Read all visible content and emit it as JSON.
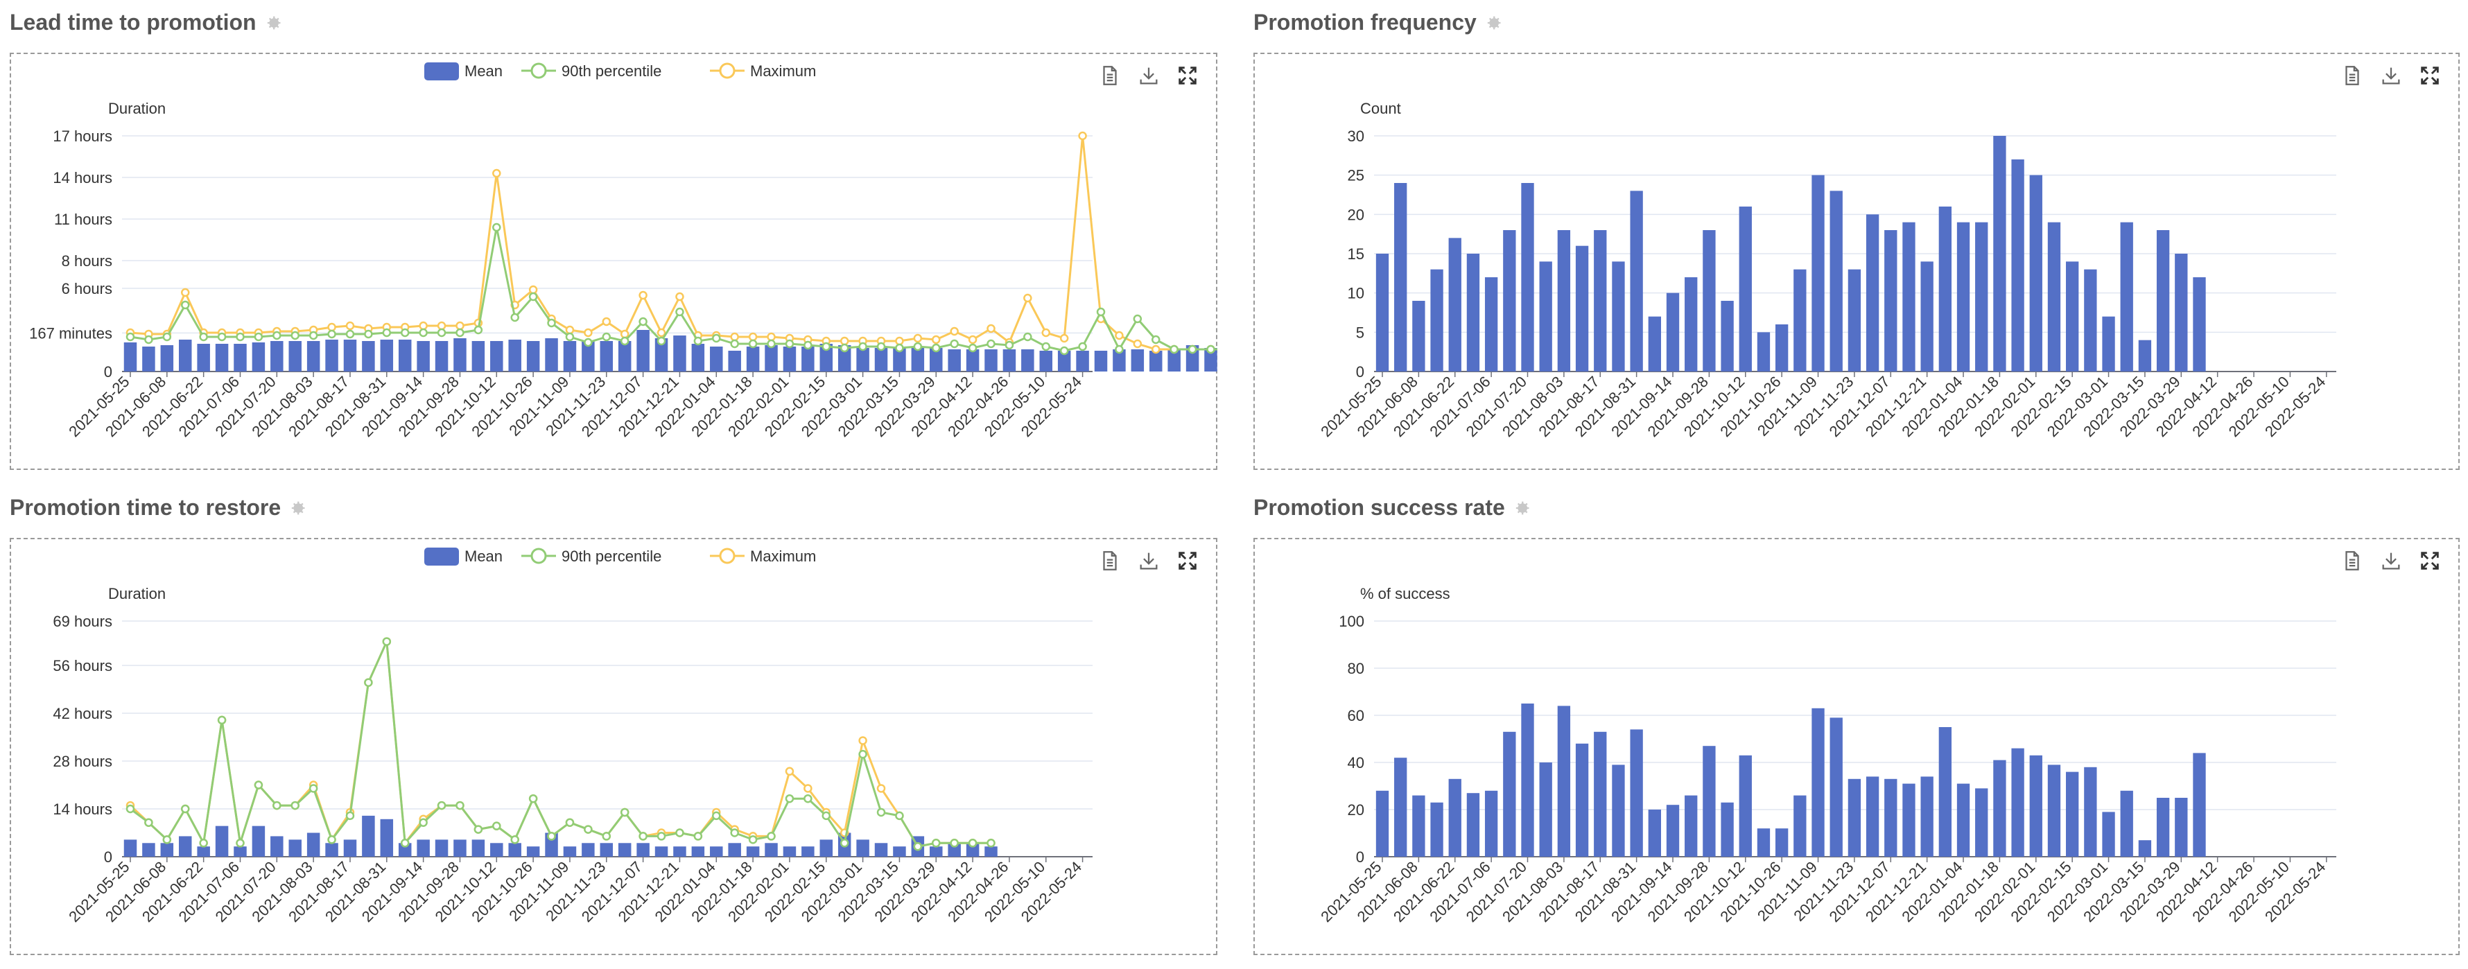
{
  "panels": [
    {
      "id": "lead-time",
      "title": "Lead time to promotion",
      "chart_data": {
        "type": "bar",
        "ylabel": "Duration",
        "legend": [
          "Mean",
          "90th percentile",
          "Maximum"
        ],
        "legend_placement": "top-center",
        "grid": true,
        "ylim": [
          0,
          17
        ],
        "yticks": [
          0,
          2.78,
          6,
          8,
          11,
          14,
          17
        ],
        "ytick_labels": [
          "0",
          "167 minutes",
          "6 hours",
          "8 hours",
          "11 hours",
          "14 hours",
          "17 hours"
        ],
        "x_tick_labels": [
          "2021-05-25",
          "2021-06-08",
          "2021-06-22",
          "2021-07-06",
          "2021-07-20",
          "2021-08-03",
          "2021-08-17",
          "2021-08-31",
          "2021-09-14",
          "2021-09-28",
          "2021-10-12",
          "2021-10-26",
          "2021-11-09",
          "2021-11-23",
          "2021-12-07",
          "2021-12-21",
          "2022-01-04",
          "2022-01-18",
          "2022-02-01",
          "2022-02-15",
          "2022-03-01",
          "2022-03-15",
          "2022-03-29",
          "2022-04-12",
          "2022-04-26",
          "2022-05-10",
          "2022-05-24"
        ],
        "series": [
          {
            "name": "Mean",
            "values": [
              2.1,
              1.8,
              1.9,
              2.3,
              2.0,
              2.0,
              2.0,
              2.1,
              2.2,
              2.2,
              2.2,
              2.3,
              2.3,
              2.2,
              2.3,
              2.3,
              2.2,
              2.2,
              2.4,
              2.2,
              2.2,
              2.3,
              2.2,
              2.4,
              2.2,
              2.2,
              2.2,
              2.2,
              3.0,
              2.4,
              2.6,
              2.0,
              1.8,
              1.5,
              1.8,
              1.9,
              1.8,
              1.8,
              2.0,
              1.9,
              1.7,
              1.7,
              1.7,
              1.7,
              1.7,
              1.6,
              1.6,
              1.6,
              1.6,
              1.6,
              1.5,
              1.5,
              1.5,
              1.5,
              1.6,
              1.6,
              1.5,
              1.6,
              1.9,
              1.7,
              1.5,
              2.4,
              1.5,
              1.5
            ]
          },
          {
            "name": "90th percentile",
            "values": [
              2.5,
              2.3,
              2.5,
              4.8,
              2.5,
              2.5,
              2.5,
              2.5,
              2.6,
              2.6,
              2.6,
              2.7,
              2.7,
              2.7,
              2.8,
              2.8,
              2.8,
              2.8,
              2.8,
              3.0,
              10.4,
              3.9,
              5.4,
              3.5,
              2.5,
              2.1,
              2.5,
              2.2,
              3.6,
              2.2,
              4.3,
              2.2,
              2.4,
              2.0,
              2.0,
              2.0,
              2.0,
              1.9,
              1.8,
              1.7,
              1.8,
              1.8,
              1.7,
              1.8,
              1.7,
              2.0,
              1.7,
              2.0,
              1.9,
              2.5,
              1.8,
              1.5,
              1.8,
              4.3,
              1.6,
              3.8,
              2.3,
              1.6,
              1.6,
              1.6,
              1.6,
              1.6,
              1.6,
              1.6
            ]
          },
          {
            "name": "Maximum",
            "values": [
              2.8,
              2.7,
              2.7,
              5.7,
              2.8,
              2.8,
              2.8,
              2.8,
              2.9,
              2.9,
              3.0,
              3.2,
              3.3,
              3.1,
              3.2,
              3.2,
              3.3,
              3.3,
              3.3,
              3.5,
              14.3,
              4.8,
              5.9,
              3.8,
              3.0,
              2.8,
              3.6,
              2.7,
              5.5,
              2.8,
              5.4,
              2.6,
              2.6,
              2.5,
              2.5,
              2.5,
              2.4,
              2.3,
              2.2,
              2.2,
              2.2,
              2.2,
              2.2,
              2.4,
              2.3,
              2.9,
              2.3,
              3.1,
              2.1,
              5.3,
              2.8,
              2.4,
              17.3,
              3.8,
              2.6,
              2.0,
              1.6,
              1.6,
              1.6,
              1.6,
              1.6,
              1.6,
              1.6,
              1.6
            ]
          }
        ]
      }
    },
    {
      "id": "frequency",
      "title": "Promotion frequency",
      "chart_data": {
        "type": "bar",
        "ylabel": "Count",
        "grid": true,
        "ylim": [
          0,
          30
        ],
        "yticks": [
          0,
          5,
          10,
          15,
          20,
          25,
          30
        ],
        "ytick_labels": [
          "0",
          "5",
          "10",
          "15",
          "20",
          "25",
          "30"
        ],
        "x_tick_labels": [
          "2021-05-25",
          "2021-06-08",
          "2021-06-22",
          "2021-07-06",
          "2021-07-20",
          "2021-08-03",
          "2021-08-17",
          "2021-08-31",
          "2021-09-14",
          "2021-09-28",
          "2021-10-12",
          "2021-10-26",
          "2021-11-09",
          "2021-11-23",
          "2021-12-07",
          "2021-12-21",
          "2022-01-04",
          "2022-01-18",
          "2022-02-01",
          "2022-02-15",
          "2022-03-01",
          "2022-03-15",
          "2022-03-29",
          "2022-04-12",
          "2022-04-26",
          "2022-05-10",
          "2022-05-24"
        ],
        "series": [
          {
            "name": "Count",
            "values": [
              15,
              24,
              9,
              13,
              17,
              15,
              12,
              18,
              24,
              14,
              18,
              16,
              18,
              14,
              23,
              7,
              10,
              12,
              18,
              9,
              21,
              5,
              6,
              13,
              25,
              23,
              13,
              20,
              18,
              19,
              14,
              21,
              19,
              19,
              30,
              27,
              25,
              19,
              14,
              13,
              7,
              19,
              4,
              18,
              15,
              12
            ]
          }
        ]
      }
    },
    {
      "id": "restore",
      "title": "Promotion time to restore",
      "chart_data": {
        "type": "bar",
        "ylabel": "Duration",
        "legend": [
          "Mean",
          "90th percentile",
          "Maximum"
        ],
        "legend_placement": "top-center",
        "grid": true,
        "ylim": [
          0,
          69
        ],
        "yticks": [
          0,
          14,
          28,
          42,
          56,
          69
        ],
        "ytick_labels": [
          "0",
          "14 hours",
          "28 hours",
          "42 hours",
          "56 hours",
          "69 hours"
        ],
        "x_tick_labels": [
          "2021-05-25",
          "2021-06-08",
          "2021-06-22",
          "2021-07-06",
          "2021-07-20",
          "2021-08-03",
          "2021-08-17",
          "2021-08-31",
          "2021-09-14",
          "2021-09-28",
          "2021-10-12",
          "2021-10-26",
          "2021-11-09",
          "2021-11-23",
          "2021-12-07",
          "2021-12-21",
          "2022-01-04",
          "2022-01-18",
          "2022-02-01",
          "2022-02-15",
          "2022-03-01",
          "2022-03-15",
          "2022-03-29",
          "2022-04-12",
          "2022-04-26",
          "2022-05-10",
          "2022-05-24"
        ],
        "series": [
          {
            "name": "Mean",
            "values": [
              5,
              4,
              4,
              6,
              3,
              9,
              3,
              9,
              6,
              5,
              7,
              4,
              5,
              12,
              11,
              4,
              5,
              5,
              5,
              5,
              4,
              4,
              3,
              7,
              3,
              4,
              4,
              4,
              4,
              3,
              3,
              3,
              3,
              4,
              3,
              4,
              3,
              3,
              5,
              7,
              5,
              4,
              3,
              6,
              3,
              4,
              4,
              3
            ]
          },
          {
            "name": "90th percentile",
            "values": [
              14,
              10,
              5,
              14,
              4,
              40,
              4,
              21,
              15,
              15,
              20,
              5,
              12,
              51,
              63,
              4,
              10,
              15,
              15,
              8,
              9,
              5,
              17,
              6,
              10,
              8,
              6,
              13,
              6,
              6,
              7,
              6,
              12,
              7,
              5,
              6,
              17,
              17,
              12,
              4,
              30,
              13,
              12,
              3,
              4,
              4,
              4,
              4
            ]
          },
          {
            "name": "Maximum",
            "values": [
              15,
              10,
              5,
              14,
              4,
              40,
              4,
              21,
              15,
              15,
              21,
              5,
              13,
              51,
              63,
              4,
              11,
              15,
              15,
              8,
              9,
              5,
              17,
              6,
              10,
              8,
              6,
              13,
              6,
              7,
              7,
              6,
              13,
              8,
              6,
              6,
              25,
              20,
              13,
              7,
              34,
              20,
              12,
              3,
              4,
              4,
              4,
              4
            ]
          }
        ]
      }
    },
    {
      "id": "success-rate",
      "title": "Promotion success rate",
      "chart_data": {
        "type": "bar",
        "ylabel": "% of success",
        "grid": true,
        "ylim": [
          0,
          100
        ],
        "yticks": [
          0,
          20,
          40,
          60,
          80,
          100
        ],
        "ytick_labels": [
          "0",
          "20",
          "40",
          "60",
          "80",
          "100"
        ],
        "x_tick_labels": [
          "2021-05-25",
          "2021-06-08",
          "2021-06-22",
          "2021-07-06",
          "2021-07-20",
          "2021-08-03",
          "2021-08-17",
          "2021-08-31",
          "2021-09-14",
          "2021-09-28",
          "2021-10-12",
          "2021-10-26",
          "2021-11-09",
          "2021-11-23",
          "2021-12-07",
          "2021-12-21",
          "2022-01-04",
          "2022-01-18",
          "2022-02-01",
          "2022-02-15",
          "2022-03-01",
          "2022-03-15",
          "2022-03-29",
          "2022-04-12",
          "2022-04-26",
          "2022-05-10",
          "2022-05-24"
        ],
        "series": [
          {
            "name": "% of success",
            "values": [
              28,
              42,
              26,
              23,
              33,
              27,
              28,
              53,
              65,
              40,
              64,
              48,
              53,
              39,
              54,
              20,
              22,
              26,
              47,
              23,
              43,
              12,
              12,
              26,
              63,
              59,
              33,
              34,
              33,
              31,
              34,
              55,
              31,
              29,
              41,
              46,
              43,
              39,
              36,
              38,
              19,
              28,
              7,
              25,
              25,
              44
            ]
          }
        ]
      }
    }
  ],
  "colors": {
    "mean": "#5470c6",
    "p90": "#91cc75",
    "max": "#fac858",
    "grid": "#e0e6f1",
    "axis": "#6e7079",
    "text": "#333333",
    "title": "#555555"
  },
  "toolbox": {
    "icons": [
      "data-view-icon",
      "download-icon",
      "fullscreen-icon"
    ]
  }
}
